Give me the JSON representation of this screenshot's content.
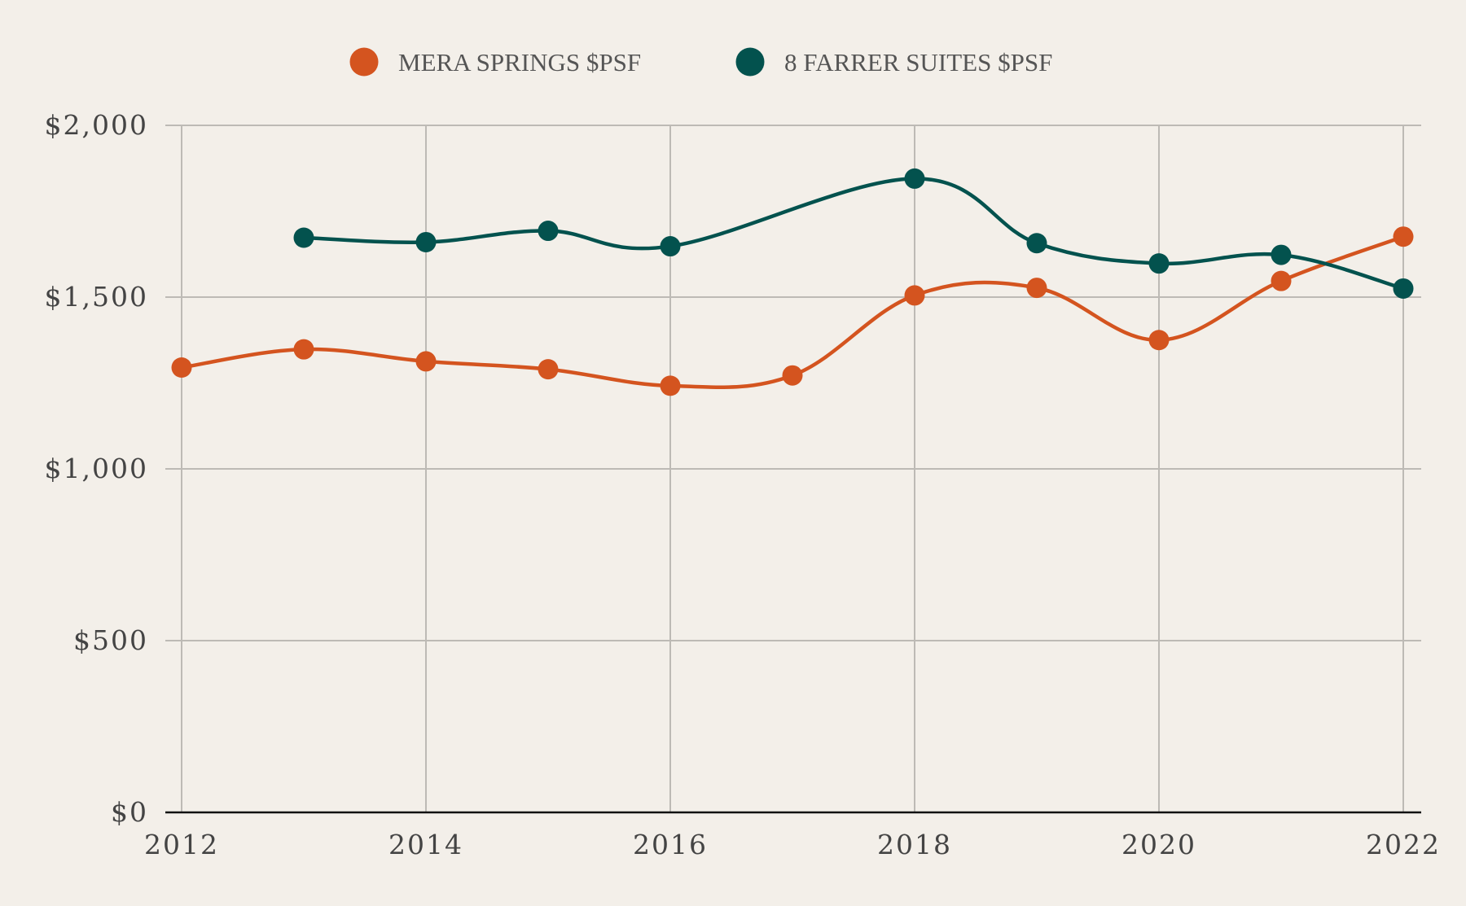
{
  "chart_data": {
    "type": "line",
    "title": "",
    "xlabel": "",
    "ylabel": "",
    "x": [
      2012,
      2013,
      2014,
      2015,
      2016,
      2017,
      2018,
      2019,
      2020,
      2021,
      2022
    ],
    "x_ticks": [
      "2012",
      "2014",
      "2016",
      "2018",
      "2020",
      "2022"
    ],
    "y_ticks": [
      "$0",
      "$500",
      "$1,000",
      "$1,500",
      "$2,000"
    ],
    "ylim": [
      0,
      2000
    ],
    "xlim": [
      2012,
      2022
    ],
    "grid": true,
    "legend_position": "top-center",
    "series": [
      {
        "name": "MERA SPRINGS $PSF",
        "color": "#d4541f",
        "values": [
          1295,
          1348,
          1313,
          1290,
          1242,
          1272,
          1505,
          1527,
          1375,
          1547,
          1676
        ]
      },
      {
        "name": "8 FARRER SUITES $PSF",
        "color": "#03524e",
        "values": [
          null,
          1673,
          1660,
          1693,
          1648,
          null,
          1845,
          1657,
          1598,
          1623,
          1525
        ]
      }
    ]
  }
}
